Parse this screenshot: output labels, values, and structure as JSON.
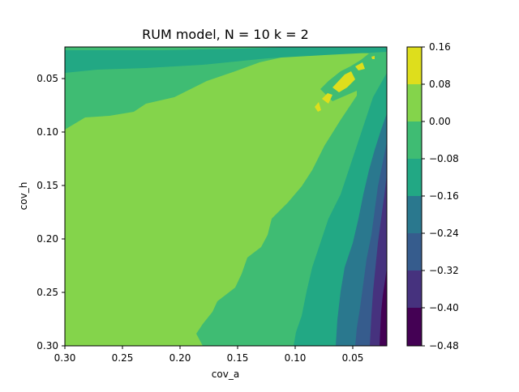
{
  "chart_data": {
    "type": "contourf",
    "title": "RUM model, N = 10 k = 2",
    "xlabel": "cov_a",
    "ylabel": "cov_h",
    "xlim": [
      0.3,
      0.02
    ],
    "ylim": [
      0.3,
      0.02
    ],
    "x_axis_inverted": true,
    "y_axis_inverted": true,
    "xticks": [
      "0.30",
      "0.25",
      "0.20",
      "0.15",
      "0.10",
      "0.05"
    ],
    "yticks": [
      "0.05",
      "0.10",
      "0.15",
      "0.20",
      "0.25",
      "0.30"
    ],
    "colormap": "viridis",
    "levels": [
      -0.48,
      -0.4,
      -0.32,
      -0.24,
      -0.16,
      -0.08,
      0.0,
      0.08,
      0.16
    ],
    "colorbar_ticks": [
      "0.16",
      "0.08",
      "0.00",
      "−0.08",
      "−0.16",
      "−0.24",
      "−0.32",
      "−0.40",
      "−0.48"
    ],
    "level_colors": [
      "#440154",
      "#46327e",
      "#365c8d",
      "#277f8e",
      "#1fa187",
      "#4ac16d",
      "#a0da39",
      "#fde725"
    ],
    "regions": [
      {
        "range": [
          0.0,
          0.08
        ],
        "description": "broad region covering most of the domain (high cov_a and high cov_h)"
      },
      {
        "range": [
          -0.08,
          0.0
        ],
        "description": "band along top edge and diagonal band toward lower right"
      },
      {
        "range": [
          -0.16,
          -0.08
        ],
        "description": "upper-left corner strip and band near low cov_a"
      },
      {
        "range": [
          -0.24,
          -0.16
        ],
        "description": "narrow band near lowest cov_a"
      },
      {
        "range": [
          -0.32,
          -0.24
        ],
        "description": "narrow band near lowest cov_a"
      },
      {
        "range": [
          -0.4,
          -0.32
        ],
        "description": "sliver near lowest cov_a, high cov_h"
      },
      {
        "range": [
          -0.48,
          -0.4
        ],
        "description": "tiny corner at lowest cov_a, highest cov_h"
      },
      {
        "range": [
          0.08,
          0.16
        ],
        "description": "small islands near cov_a≈0.05, cov_h≈0.05–0.08"
      }
    ]
  }
}
